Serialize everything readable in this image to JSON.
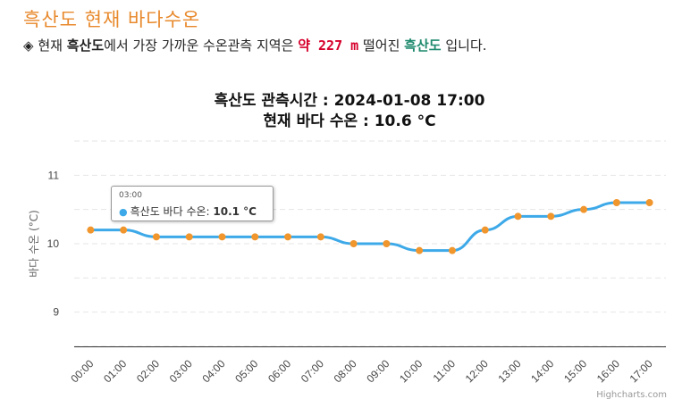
{
  "page": {
    "title": "흑산도 현재 바다수온",
    "info": {
      "bullet": "◈",
      "prefix": "현재",
      "station": "흑산도",
      "middle": "에서 가장 가까운 수온관측 지역은",
      "distance": "약 227 m",
      "after": "떨어진",
      "nearest_station": "흑산도",
      "suffix": "입니다."
    }
  },
  "chart_data": {
    "type": "line",
    "title": "흑산도 관측시간 : 2024-01-08 17:00",
    "subtitle": "현재 바다 수온 : 10.6 °C",
    "ylabel": "바다 수온 (°C)",
    "xlabel": "",
    "categories": [
      "00:00",
      "01:00",
      "02:00",
      "03:00",
      "04:00",
      "05:00",
      "06:00",
      "07:00",
      "08:00",
      "09:00",
      "10:00",
      "11:00",
      "12:00",
      "13:00",
      "14:00",
      "15:00",
      "16:00",
      "17:00"
    ],
    "series": [
      {
        "name": "흑산도 바다 수온",
        "values": [
          10.2,
          10.2,
          10.1,
          10.1,
          10.1,
          10.1,
          10.1,
          10.1,
          10.0,
          10.0,
          9.9,
          9.9,
          10.2,
          10.4,
          10.4,
          10.5,
          10.6,
          10.6
        ]
      }
    ],
    "yticks": [
      9,
      10,
      11
    ],
    "ylim": [
      8.5,
      11.5
    ],
    "grid": true,
    "line_color": "#3da9e8",
    "marker_color": "#f0962d",
    "tooltip": {
      "time": "03:00",
      "label": "흑산도 바다 수온",
      "value": "10.1 °C"
    },
    "credits": "Highcharts.com"
  }
}
